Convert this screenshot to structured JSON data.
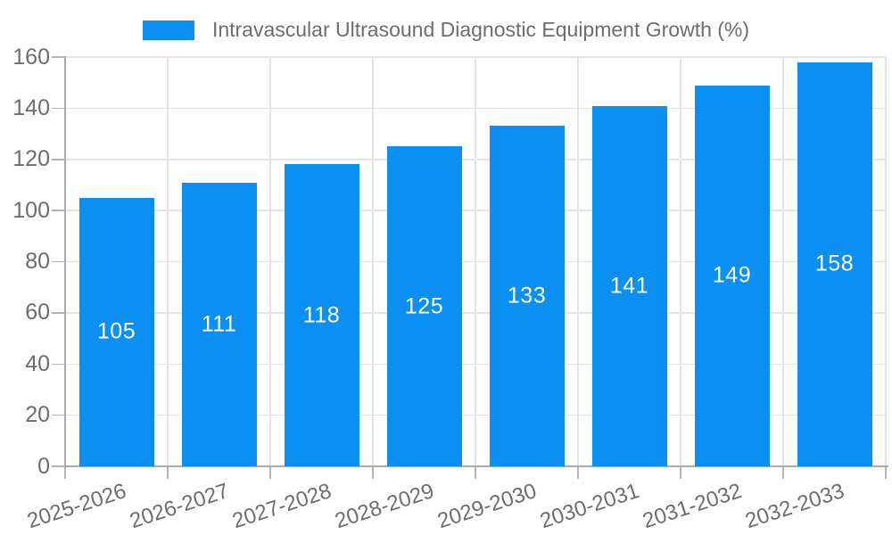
{
  "chart_data": {
    "type": "bar",
    "title": "Intravascular Ultrasound Diagnostic Equipment Growth (%)",
    "legend_label": "Intravascular Ultrasound Diagnostic Equipment Growth (%)",
    "legend_position": "top-center",
    "categories": [
      "2025-2026",
      "2026-2027",
      "2027-2028",
      "2028-2029",
      "2029-2030",
      "2030-2031",
      "2031-2032",
      "2032-2033"
    ],
    "values": [
      105,
      111,
      118,
      125,
      133,
      141,
      149,
      158
    ],
    "xlabel": "",
    "ylabel": "",
    "ylim": [
      0,
      160
    ],
    "y_ticks": [
      0,
      20,
      40,
      60,
      80,
      100,
      120,
      140,
      160
    ],
    "grid": true,
    "colors": {
      "bar": "#0b90f2",
      "value_label": "#ffffff",
      "grid_line": "#e4e4e4",
      "axis_line": "#ababab",
      "tick_mark": "#b5b5b5",
      "tick_text": "#6d6d6d",
      "background": "#ffffff"
    }
  }
}
